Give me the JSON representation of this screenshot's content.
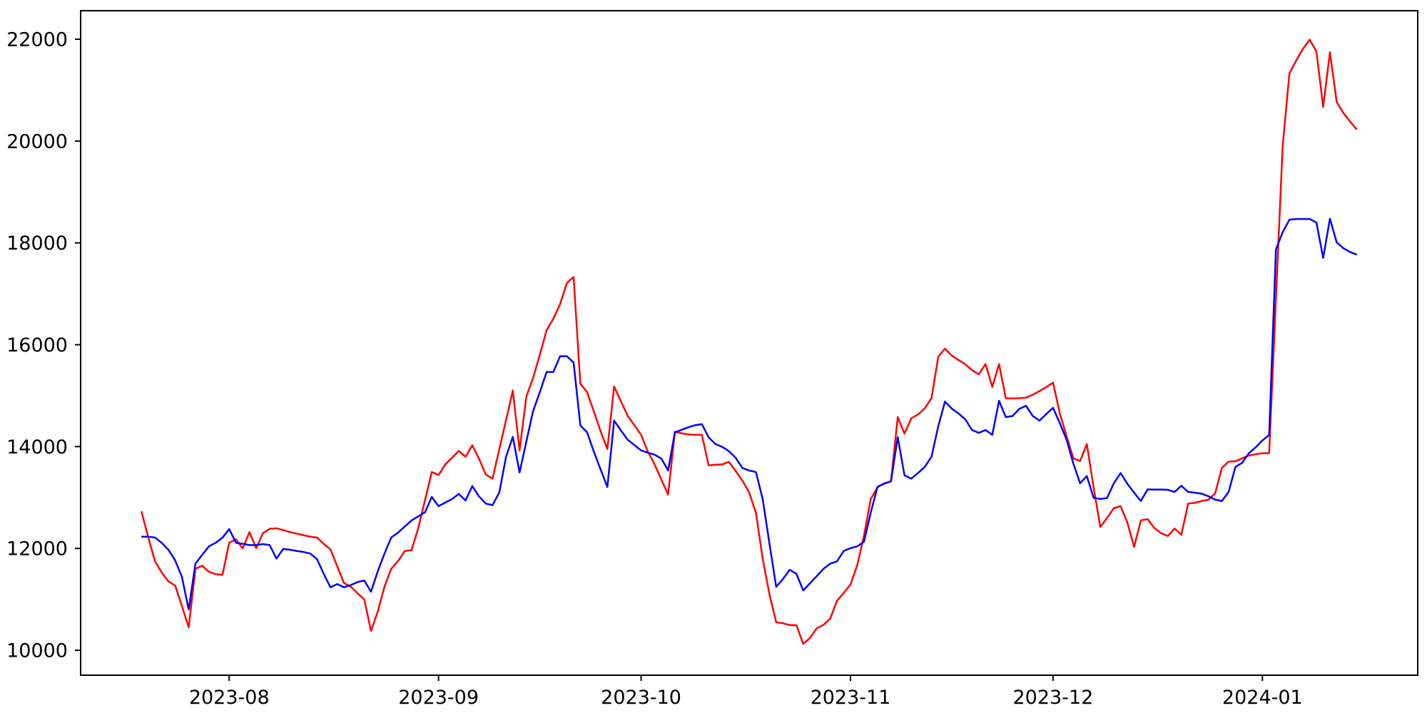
{
  "figure": {
    "background_color": "#ffffff",
    "spine_color": "#000000",
    "tick_color": "#000000",
    "label_color": "#000000"
  },
  "chart_data": {
    "type": "line",
    "title": "",
    "xlabel": "",
    "ylabel": "",
    "grid": false,
    "legend": "none",
    "ylim": [
      9510,
      22560
    ],
    "xlim_dates": [
      "2023-07-10",
      "2024-01-24"
    ],
    "y_ticks": [
      {
        "value": 10000,
        "label": "10000"
      },
      {
        "value": 12000,
        "label": "12000"
      },
      {
        "value": 14000,
        "label": "14000"
      },
      {
        "value": 16000,
        "label": "16000"
      },
      {
        "value": 18000,
        "label": "18000"
      },
      {
        "value": 20000,
        "label": "20000"
      },
      {
        "value": 22000,
        "label": "22000"
      }
    ],
    "x_ticks": [
      {
        "date": "2023-08-01",
        "label": "2023-08"
      },
      {
        "date": "2023-09-01",
        "label": "2023-09"
      },
      {
        "date": "2023-10-01",
        "label": "2023-10"
      },
      {
        "date": "2023-11-01",
        "label": "2023-11"
      },
      {
        "date": "2023-12-01",
        "label": "2023-12"
      },
      {
        "date": "2024-01-01",
        "label": "2024-01"
      }
    ],
    "series": [
      {
        "name": "red-series",
        "color": "#ff0000",
        "line_width": 2.5,
        "start": "2023-07-19",
        "cadence": "daily",
        "end": "2024-01-15",
        "values": [
          12730,
          12225,
          11750,
          11530,
          11350,
          11270,
          10870,
          10450,
          11600,
          11660,
          11540,
          11495,
          11480,
          12110,
          12180,
          12000,
          12320,
          12005,
          12300,
          12385,
          12395,
          12360,
          12320,
          12290,
          12260,
          12230,
          12215,
          12090,
          11980,
          11650,
          11320,
          11250,
          11120,
          11000,
          10380,
          10760,
          11250,
          11600,
          11750,
          11950,
          11965,
          12400,
          12950,
          13500,
          13440,
          13650,
          13780,
          13915,
          13800,
          14025,
          13760,
          13450,
          13370,
          13950,
          14520,
          15100,
          13925,
          14980,
          15350,
          15800,
          16285,
          16510,
          16800,
          17210,
          17330,
          15235,
          15070,
          14690,
          14300,
          13950,
          15180,
          14890,
          14605,
          14420,
          14230,
          13900,
          13650,
          13350,
          13060,
          14290,
          14260,
          14240,
          14230,
          14230,
          13630,
          13645,
          13650,
          13700,
          13520,
          13330,
          13100,
          12700,
          11800,
          11100,
          10550,
          10530,
          10495,
          10490,
          10125,
          10240,
          10430,
          10500,
          10620,
          10970,
          11125,
          11290,
          11670,
          12250,
          12970,
          13200,
          13280,
          13320,
          14580,
          14255,
          14555,
          14630,
          14750,
          14950,
          15765,
          15925,
          15785,
          15700,
          15615,
          15500,
          15420,
          15620,
          15170,
          15620,
          14950,
          14945,
          14950,
          14960,
          15020,
          15090,
          15170,
          15255,
          14650,
          14205,
          13770,
          13715,
          14050,
          13200,
          12420,
          12600,
          12790,
          12830,
          12510,
          12030,
          12550,
          12575,
          12400,
          12300,
          12245,
          12390,
          12270,
          12880,
          12895,
          12930,
          12955,
          13080,
          13580,
          13705,
          13710,
          13770,
          13825,
          13850,
          13870,
          13870,
          16900,
          19900,
          21330,
          21580,
          21810,
          21990,
          21760,
          20670,
          21745,
          20765,
          20550,
          20380,
          20225
        ]
      },
      {
        "name": "blue-series",
        "color": "#0000ff",
        "line_width": 2.5,
        "start": "2023-07-19",
        "cadence": "daily",
        "end": "2024-01-15",
        "values": [
          12230,
          12230,
          12215,
          12110,
          11975,
          11765,
          11440,
          10800,
          11700,
          11875,
          12040,
          12110,
          12210,
          12380,
          12110,
          12090,
          12065,
          12065,
          12085,
          12065,
          11800,
          11990,
          11975,
          11950,
          11930,
          11900,
          11790,
          11500,
          11235,
          11300,
          11235,
          11280,
          11340,
          11370,
          11150,
          11550,
          11900,
          12215,
          12310,
          12430,
          12550,
          12630,
          12710,
          13010,
          12830,
          12900,
          12970,
          13070,
          12940,
          13225,
          13020,
          12880,
          12850,
          13100,
          13800,
          14190,
          13490,
          14100,
          14695,
          15070,
          15465,
          15465,
          15775,
          15775,
          15650,
          14415,
          14280,
          13900,
          13550,
          13205,
          14510,
          14320,
          14135,
          14030,
          13925,
          13880,
          13840,
          13765,
          13530,
          14280,
          14330,
          14380,
          14420,
          14440,
          14180,
          14050,
          13995,
          13910,
          13780,
          13580,
          13530,
          13500,
          12970,
          12100,
          11245,
          11400,
          11580,
          11500,
          11175,
          11315,
          11455,
          11600,
          11700,
          11745,
          11950,
          12005,
          12040,
          12130,
          12700,
          13210,
          13270,
          13320,
          14185,
          13435,
          13370,
          13480,
          13600,
          13800,
          14400,
          14885,
          14745,
          14650,
          14535,
          14325,
          14270,
          14325,
          14230,
          14900,
          14580,
          14600,
          14740,
          14800,
          14600,
          14510,
          14640,
          14760,
          14460,
          14135,
          13670,
          13280,
          13420,
          12995,
          12970,
          12990,
          13280,
          13480,
          13270,
          13095,
          12930,
          13160,
          13155,
          13155,
          13150,
          13110,
          13230,
          13110,
          13095,
          13075,
          13025,
          12960,
          12930,
          13110,
          13600,
          13680,
          13870,
          13985,
          14120,
          14230,
          17870,
          18210,
          18455,
          18470,
          18470,
          18470,
          18400,
          17705,
          18475,
          18010,
          17895,
          17820,
          17770
        ]
      }
    ]
  }
}
